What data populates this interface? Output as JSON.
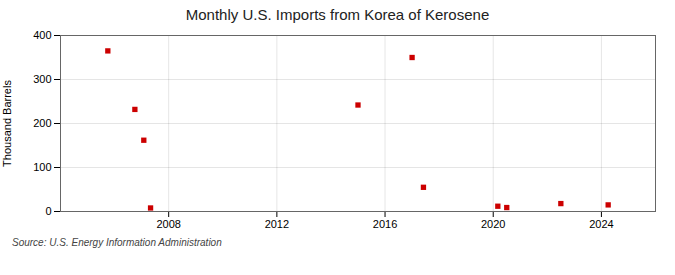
{
  "chart_data": {
    "type": "scatter",
    "title": "Monthly U.S. Imports from Korea of Kerosene",
    "ylabel": "Thousand Barrels",
    "annotation": "Source: U.S. Energy Information Administration",
    "x": [
      2005.75,
      2006.75,
      2007.08,
      2007.33,
      2015.0,
      2017.0,
      2017.42,
      2020.17,
      2020.5,
      2022.5,
      2024.25
    ],
    "values": [
      365,
      232,
      162,
      8,
      242,
      350,
      55,
      12,
      9,
      18,
      15
    ],
    "color": "#cc0000",
    "marker": "square",
    "xlim": [
      2004.0,
      2026.0
    ],
    "ylim": [
      0,
      400
    ],
    "xticks": [
      2008,
      2012,
      2016,
      2020,
      2024
    ],
    "yticks": [
      0,
      100,
      200,
      300,
      400
    ],
    "grid": true
  }
}
